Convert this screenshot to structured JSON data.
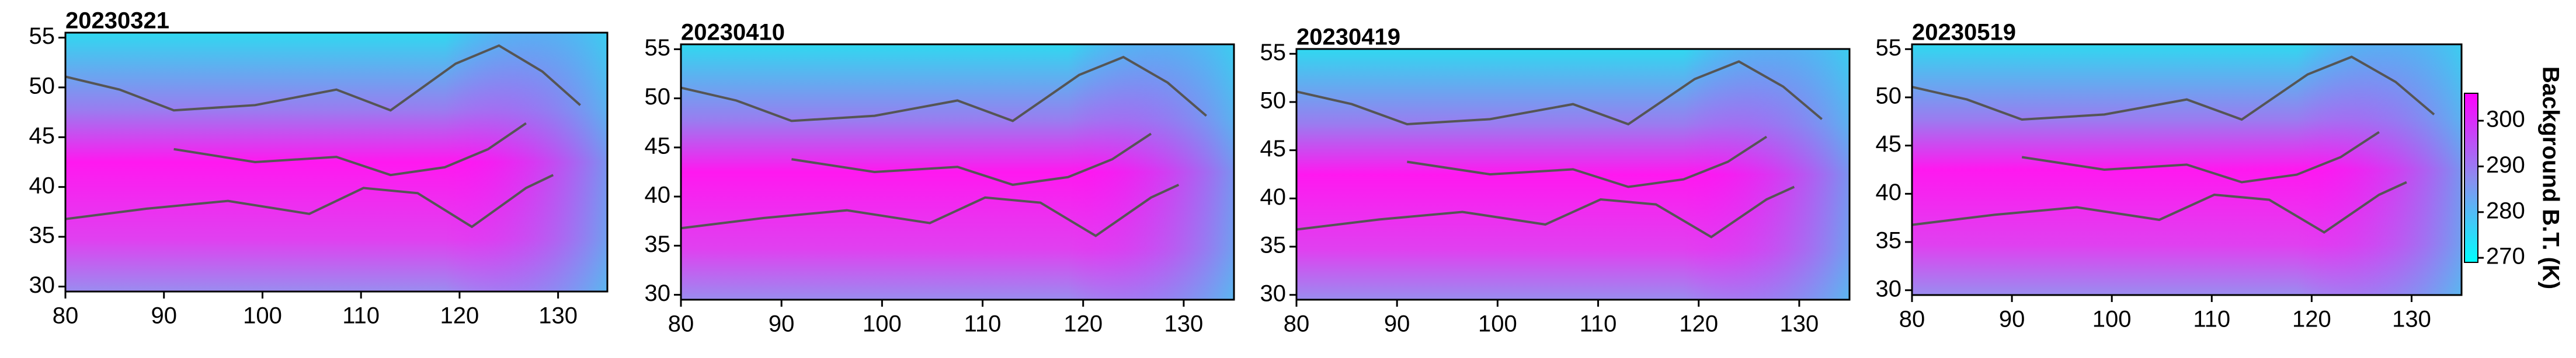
{
  "panels": [
    {
      "title": "20230321",
      "xlim": [
        80,
        135
      ],
      "ylim": [
        29.5,
        55.5
      ],
      "xticks": [
        80,
        90,
        100,
        110,
        120,
        130
      ],
      "yticks": [
        30,
        35,
        40,
        45,
        50,
        55
      ]
    },
    {
      "title": "20230410",
      "xlim": [
        80,
        135
      ],
      "ylim": [
        29.5,
        55.5
      ],
      "xticks": [
        80,
        90,
        100,
        110,
        120,
        130
      ],
      "yticks": [
        30,
        35,
        40,
        45,
        50,
        55
      ]
    },
    {
      "title": "20230419",
      "xlim": [
        80,
        135
      ],
      "ylim": [
        29.5,
        55.5
      ],
      "xticks": [
        80,
        90,
        100,
        110,
        120,
        130
      ],
      "yticks": [
        30,
        35,
        40,
        45,
        50,
        55
      ]
    },
    {
      "title": "20230519",
      "xlim": [
        80,
        135
      ],
      "ylim": [
        29.5,
        55.5
      ],
      "xticks": [
        80,
        90,
        100,
        110,
        120,
        130
      ],
      "yticks": [
        30,
        35,
        40,
        45,
        50,
        55
      ]
    }
  ],
  "colorbar": {
    "label": "Background B.T. (K)",
    "lim": [
      269,
      306
    ],
    "ticks": [
      270,
      280,
      290,
      300
    ]
  }
}
